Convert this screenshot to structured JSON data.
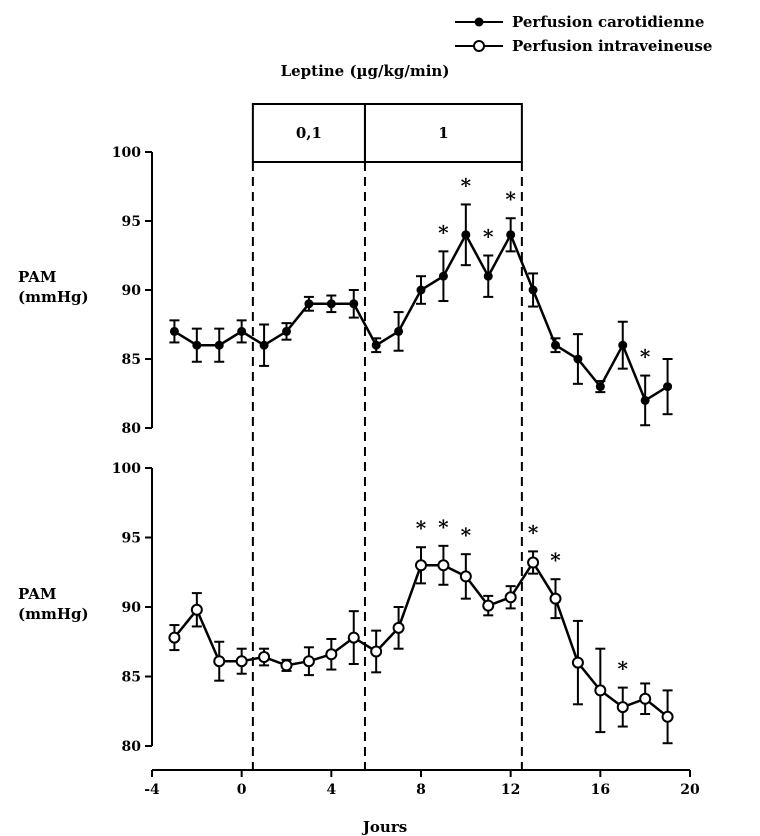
{
  "chart_data": {
    "type": "line",
    "xlabel": "Jours",
    "xlim": [
      -4,
      20
    ],
    "xticks": [
      -4,
      0,
      4,
      8,
      12,
      16,
      20
    ],
    "treatment": {
      "title": "Leptine (µg/kg/min)",
      "phases": [
        {
          "label": "0,1",
          "start": 0.5,
          "end": 5.5
        },
        {
          "label": "1",
          "start": 5.5,
          "end": 12.5
        }
      ]
    },
    "legend": {
      "placement": "top-right",
      "entries": [
        {
          "label": "Perfusion carotidienne",
          "marker": "filled-circle"
        },
        {
          "label": "Perfusion intraveineuse",
          "marker": "open-circle"
        }
      ]
    },
    "panels": [
      {
        "name": "carotid",
        "ylabel": [
          "PAM",
          "(mmHg)"
        ],
        "ylim": [
          80,
          100
        ],
        "yticks": [
          80,
          85,
          90,
          95,
          100
        ],
        "marker": "filled",
        "x": [
          -3,
          -2,
          -1,
          0,
          1,
          2,
          3,
          4,
          5,
          6,
          7,
          8,
          9,
          10,
          11,
          12,
          13,
          14,
          15,
          16,
          17,
          18,
          19
        ],
        "values": [
          87,
          86,
          86,
          87,
          86,
          87,
          89,
          89,
          89,
          86,
          87,
          90,
          91,
          94,
          91,
          94,
          90,
          86,
          85,
          83,
          86,
          82,
          83
        ],
        "errors": [
          0.8,
          1.2,
          1.2,
          0.8,
          1.5,
          0.6,
          0.5,
          0.6,
          1.0,
          0.5,
          1.4,
          1.0,
          1.8,
          2.2,
          1.5,
          1.2,
          1.2,
          0.5,
          1.8,
          0.4,
          1.7,
          1.8,
          2.0
        ],
        "significant_days": [
          9,
          10,
          11,
          12,
          18
        ]
      },
      {
        "name": "intravenous",
        "ylabel": [
          "PAM",
          "(mmHg)"
        ],
        "ylim": [
          80,
          100
        ],
        "yticks": [
          80,
          85,
          90,
          95,
          100
        ],
        "marker": "open",
        "x": [
          -3,
          -2,
          -1,
          0,
          1,
          2,
          3,
          4,
          5,
          6,
          7,
          8,
          9,
          10,
          11,
          12,
          13,
          14,
          15,
          16,
          17,
          18,
          19
        ],
        "values": [
          87.8,
          89.8,
          86.1,
          86.1,
          86.4,
          85.8,
          86.1,
          86.6,
          87.8,
          86.8,
          88.5,
          93.0,
          93.0,
          92.2,
          90.1,
          90.7,
          93.2,
          90.6,
          86.0,
          84.0,
          82.8,
          83.4,
          82.1
        ],
        "errors": [
          0.9,
          1.2,
          1.4,
          0.9,
          0.6,
          0.4,
          1.0,
          1.1,
          1.9,
          1.5,
          1.5,
          1.3,
          1.4,
          1.6,
          0.7,
          0.8,
          0.8,
          1.4,
          3.0,
          3.0,
          1.4,
          1.1,
          1.9
        ],
        "significant_days": [
          8,
          9,
          10,
          13,
          14,
          17
        ]
      }
    ]
  }
}
